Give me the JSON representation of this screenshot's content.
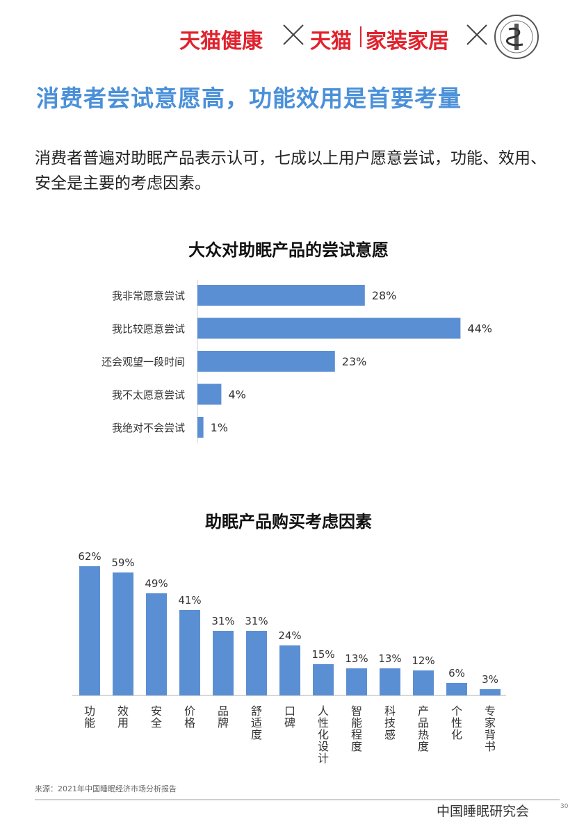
{
  "header": {
    "brand_tmall_health": "天猫健康",
    "brand_tmall": "天猫",
    "brand_home": "家装家居",
    "logo": "china-sleep-research-society-seal-icon"
  },
  "title": "消费者尝试意愿高，功能效用是首要考量",
  "intro": "消费者普遍对助眠产品表示认可，七成以上用户愿意尝试，功能、效用、安全是主要的考虑因素。",
  "chart_data": [
    {
      "type": "bar",
      "orientation": "horizontal",
      "title": "大众对助眠产品的尝试意愿",
      "categories": [
        "我非常愿意尝试",
        "我比较愿意尝试",
        "还会观望一段时间",
        "我不太愿意尝试",
        "我绝对不会尝试"
      ],
      "values": [
        28,
        44,
        23,
        4,
        1
      ],
      "value_labels": [
        "28%",
        "44%",
        "23%",
        "4%",
        "1%"
      ],
      "unit": "%",
      "color": "#5b8fd3"
    },
    {
      "type": "bar",
      "orientation": "vertical",
      "title": "助眠产品购买考虑因素",
      "categories": [
        "功能",
        "效用",
        "安全",
        "价格",
        "品牌",
        "舒适度",
        "口碑",
        "人性化设计",
        "智能程度",
        "科技感",
        "产品热度",
        "个性化",
        "专家背书"
      ],
      "values": [
        62,
        59,
        49,
        41,
        31,
        31,
        24,
        15,
        13,
        13,
        12,
        6,
        3
      ],
      "value_labels": [
        "62%",
        "59%",
        "49%",
        "41%",
        "31%",
        "31%",
        "24%",
        "15%",
        "13%",
        "13%",
        "12%",
        "6%",
        "3%"
      ],
      "unit": "%",
      "color": "#5b8fd3"
    }
  ],
  "source": "来源：2021年中国睡眠经济市场分析报告",
  "watermark": "中国睡眠研究会",
  "page_number": "30",
  "colors": {
    "brand_red": "#e0232e",
    "title_blue": "#4a90d9",
    "bar_blue": "#5b8fd3"
  }
}
